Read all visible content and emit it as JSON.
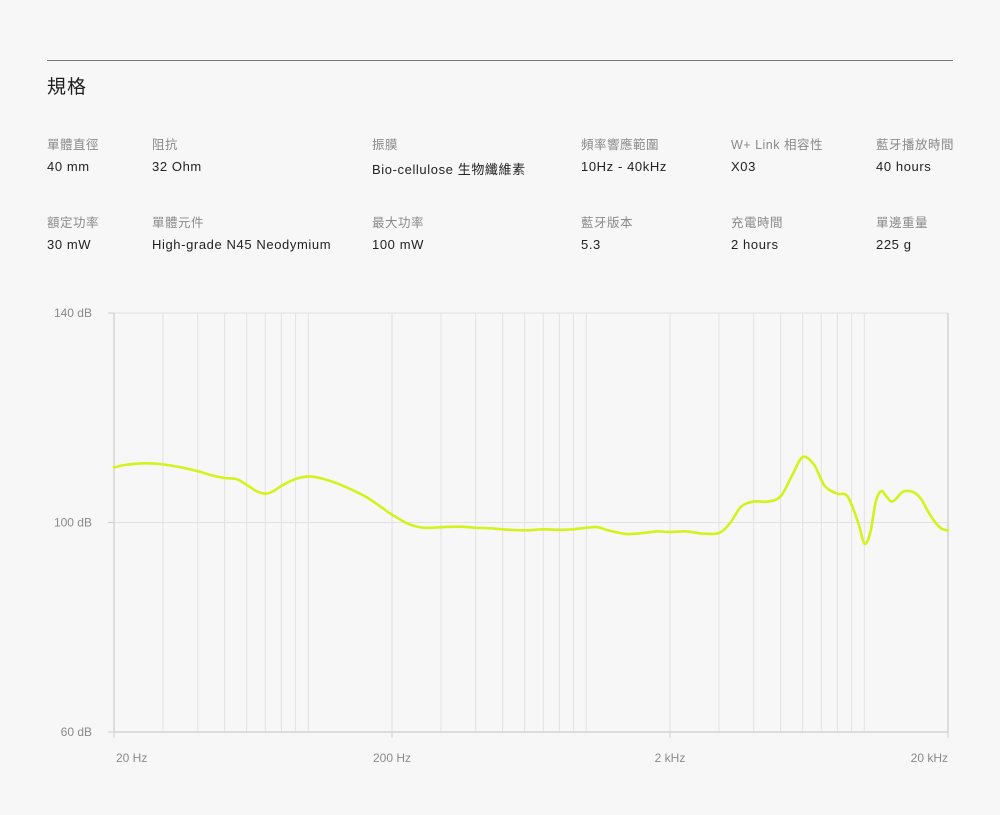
{
  "section_title": "規格",
  "specs": [
    {
      "label": "單體直徑",
      "value": "40 mm"
    },
    {
      "label": "阻抗",
      "value": "32 Ohm"
    },
    {
      "label": "振膜",
      "value": "Bio-cellulose 生物纖維素"
    },
    {
      "label": "頻率響應範圍",
      "value": "10Hz - 40kHz"
    },
    {
      "label": "W+ Link 相容性",
      "value": "X03"
    },
    {
      "label": "藍牙播放時間",
      "value": "40 hours"
    },
    {
      "label": "額定功率",
      "value": "30 mW"
    },
    {
      "label": "單體元件",
      "value": "High-grade N45 Neodymium"
    },
    {
      "label": "最大功率",
      "value": "100 mW"
    },
    {
      "label": "藍牙版本",
      "value": "5.3"
    },
    {
      "label": "充電時間",
      "value": "2 hours"
    },
    {
      "label": "單邊重量",
      "value": "225 g"
    }
  ],
  "chart_data": {
    "type": "line",
    "title": "",
    "xlabel": "",
    "ylabel": "",
    "x_scale": "log",
    "xlim": [
      20,
      20000
    ],
    "ylim": [
      60,
      140
    ],
    "x_ticks": [
      {
        "value": 20,
        "label": "20 Hz"
      },
      {
        "value": 200,
        "label": "200 Hz"
      },
      {
        "value": 2000,
        "label": "2 kHz"
      },
      {
        "value": 20000,
        "label": "20 kHz"
      }
    ],
    "y_ticks": [
      {
        "value": 140,
        "label": "140 dB"
      },
      {
        "value": 100,
        "label": "100 dB"
      },
      {
        "value": 60,
        "label": "60 dB"
      }
    ],
    "grid": true,
    "line_color": "#d4f21c",
    "series": [
      {
        "x": [
          20,
          22,
          26,
          30,
          35,
          40,
          45,
          50,
          55,
          60,
          65,
          70,
          75,
          80,
          90,
          100,
          110,
          125,
          140,
          160,
          180,
          200,
          230,
          260,
          300,
          350,
          400,
          450,
          500,
          600,
          700,
          800,
          900,
          1000,
          1100,
          1200,
          1400,
          1600,
          1800,
          2000,
          2300,
          2600,
          3000,
          3300,
          3600,
          4000,
          4500,
          5000,
          5500,
          6000,
          6600,
          7200,
          8000,
          8700,
          9500,
          10000,
          10500,
          11000,
          11500,
          12000,
          12500,
          13000,
          13500,
          14000,
          15000,
          16000,
          17000,
          18000,
          19000,
          20000
        ],
        "y": [
          110.5,
          111.0,
          111.3,
          111.1,
          110.5,
          109.8,
          109.0,
          108.5,
          108.3,
          107.2,
          106.0,
          105.5,
          106.0,
          107.0,
          108.3,
          108.8,
          108.5,
          107.6,
          106.5,
          105.0,
          103.2,
          101.5,
          99.7,
          99.0,
          99.1,
          99.2,
          99.0,
          98.9,
          98.7,
          98.5,
          98.7,
          98.6,
          98.7,
          99.0,
          99.1,
          98.5,
          97.8,
          98.0,
          98.3,
          98.2,
          98.3,
          97.9,
          98.0,
          100.0,
          103.0,
          104.0,
          104.0,
          105.0,
          109.0,
          112.5,
          111.0,
          107.0,
          105.5,
          105.0,
          100.0,
          96.0,
          98.0,
          104.0,
          106.0,
          105.0,
          104.0,
          104.5,
          105.5,
          106.0,
          105.8,
          104.5,
          102.0,
          100.0,
          98.8,
          98.5
        ]
      }
    ]
  }
}
